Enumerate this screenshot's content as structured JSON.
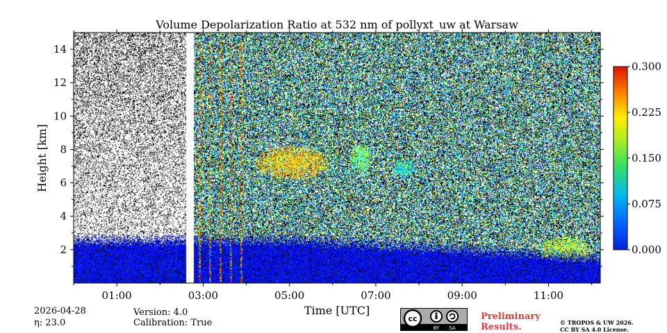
{
  "chart_data": {
    "type": "heatmap",
    "title": "Volume Depolarization Ratio at 532 nm of pollyxt_uw at Warsaw",
    "xlabel": "Time [UTC]",
    "ylabel": "Height [km]",
    "x_range_hours": [
      0.0,
      12.2
    ],
    "ylim": [
      0,
      15
    ],
    "x_ticks": [
      {
        "value": 1,
        "label": "01:00"
      },
      {
        "value": 3,
        "label": "03:00"
      },
      {
        "value": 5,
        "label": "05:00"
      },
      {
        "value": 7,
        "label": "07:00"
      },
      {
        "value": 9,
        "label": "09:00"
      },
      {
        "value": 11,
        "label": "11:00"
      }
    ],
    "x_minor_ticks": [
      0,
      2,
      4,
      6,
      8,
      10,
      12
    ],
    "y_ticks": [
      2,
      4,
      6,
      8,
      10,
      12,
      14
    ],
    "colorbar": {
      "range": [
        0.0,
        0.3
      ],
      "ticks": [
        "0.000",
        "0.075",
        "0.150",
        "0.225",
        "0.300"
      ],
      "colormap": "jet"
    },
    "missing_data_hours": [
      [
        2.6,
        2.78
      ]
    ],
    "features": [
      {
        "label": "aerosol boundary layer",
        "t_start": 0.0,
        "t_end": 12.2,
        "h_bottom": 0.0,
        "h_top": 3.0,
        "depol": 0.03
      },
      {
        "label": "depolarizing layer",
        "t_start": 4.2,
        "t_end": 5.9,
        "h_bottom": 6.2,
        "h_top": 8.2,
        "depol": 0.2
      },
      {
        "label": "depolarizing layer",
        "t_start": 6.4,
        "t_end": 6.9,
        "h_bottom": 6.6,
        "h_top": 8.4,
        "depol": 0.15
      },
      {
        "label": "depolarizing layer",
        "t_start": 7.4,
        "t_end": 7.9,
        "h_bottom": 6.4,
        "h_top": 7.4,
        "depol": 0.12
      },
      {
        "label": "depolarizing layer",
        "t_start": 10.8,
        "t_end": 12.0,
        "h_bottom": 1.0,
        "h_top": 2.8,
        "depol": 0.17
      }
    ]
  },
  "footer": {
    "date": "2026-04-28",
    "eta": "η: 23.0",
    "version": "Version: 4.0",
    "calibration": "Calibration: True",
    "preliminary_line1": "Preliminary",
    "preliminary_line2": "Results.",
    "copyright_line1": "© TROPOS & UW 2026.",
    "copyright_line2": "CC BY SA 4.0 License.",
    "cc_by": "BY",
    "cc_sa": "SA"
  }
}
